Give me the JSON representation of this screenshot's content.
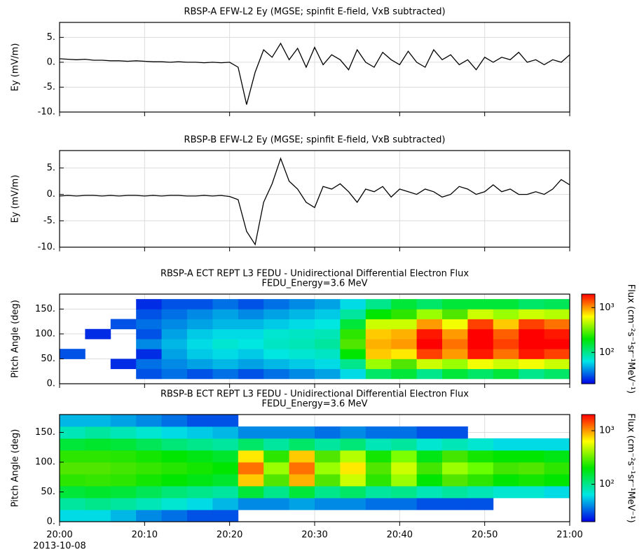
{
  "chart_data": [
    {
      "type": "line",
      "title": "RBSP-A EFW-L2  Ey (MGSE; spinfit E-field, VxB subtracted)",
      "y_label": "Ey (mV/m)",
      "x": [
        "20:00",
        "20:01",
        "20:02",
        "20:03",
        "20:04",
        "20:05",
        "20:06",
        "20:07",
        "20:08",
        "20:09",
        "20:10",
        "20:11",
        "20:12",
        "20:13",
        "20:14",
        "20:15",
        "20:16",
        "20:17",
        "20:18",
        "20:19",
        "20:20",
        "20:21",
        "20:22",
        "20:23",
        "20:24",
        "20:25",
        "20:26",
        "20:27",
        "20:28",
        "20:29",
        "20:30",
        "20:31",
        "20:32",
        "20:33",
        "20:34",
        "20:35",
        "20:36",
        "20:37",
        "20:38",
        "20:39",
        "20:40",
        "20:41",
        "20:42",
        "20:43",
        "20:44",
        "20:45",
        "20:46",
        "20:47",
        "20:48",
        "20:49",
        "20:50",
        "20:51",
        "20:52",
        "20:53",
        "20:54",
        "20:55",
        "20:56",
        "20:57",
        "20:58",
        "20:59",
        "21:00"
      ],
      "values": [
        0.7,
        0.6,
        0.5,
        0.6,
        0.4,
        0.4,
        0.3,
        0.3,
        0.2,
        0.3,
        0.2,
        0.1,
        0.1,
        0.0,
        0.1,
        0.0,
        0.0,
        -0.1,
        0.0,
        -0.1,
        0.0,
        -1.0,
        -8.5,
        -2.0,
        2.5,
        1.0,
        3.8,
        0.5,
        2.8,
        -1.0,
        3.0,
        -0.5,
        1.5,
        0.5,
        -1.5,
        2.5,
        0.0,
        -1.0,
        2.0,
        0.5,
        -0.5,
        2.2,
        0.0,
        -1.0,
        2.5,
        0.5,
        1.5,
        -0.5,
        0.5,
        -1.5,
        1.0,
        0.0,
        1.0,
        0.5,
        2.0,
        0.0,
        0.5,
        -0.5,
        0.5,
        0.0,
        1.5
      ],
      "color": "#000000",
      "xlim": [
        "20:00",
        "21:00"
      ],
      "xticks": [
        "20:00",
        "20:10",
        "20:20",
        "20:30",
        "20:40",
        "20:50",
        "21:00"
      ],
      "ylim": [
        -10,
        8
      ],
      "yticks": [
        {
          "value": -10,
          "label": "-10."
        },
        {
          "value": -5,
          "label": "-5."
        },
        {
          "value": 0,
          "label": "0."
        },
        {
          "value": 5,
          "label": "5."
        }
      ],
      "grid": true
    },
    {
      "type": "line",
      "title": "RBSP-B  EFW-L2  Ey (MGSE; spinfit E-field, VxB subtracted)",
      "y_label": "Ey (mV/m)",
      "x": [
        "20:00",
        "20:01",
        "20:02",
        "20:03",
        "20:04",
        "20:05",
        "20:06",
        "20:07",
        "20:08",
        "20:09",
        "20:10",
        "20:11",
        "20:12",
        "20:13",
        "20:14",
        "20:15",
        "20:16",
        "20:17",
        "20:18",
        "20:19",
        "20:20",
        "20:21",
        "20:22",
        "20:23",
        "20:24",
        "20:25",
        "20:26",
        "20:27",
        "20:28",
        "20:29",
        "20:30",
        "20:31",
        "20:32",
        "20:33",
        "20:34",
        "20:35",
        "20:36",
        "20:37",
        "20:38",
        "20:39",
        "20:40",
        "20:41",
        "20:42",
        "20:43",
        "20:44",
        "20:45",
        "20:46",
        "20:47",
        "20:48",
        "20:49",
        "20:50",
        "20:51",
        "20:52",
        "20:53",
        "20:54",
        "20:55",
        "20:56",
        "20:57",
        "20:58",
        "20:59",
        "21:00"
      ],
      "values": [
        -0.3,
        -0.2,
        -0.3,
        -0.2,
        -0.2,
        -0.3,
        -0.2,
        -0.3,
        -0.2,
        -0.2,
        -0.3,
        -0.2,
        -0.3,
        -0.2,
        -0.2,
        -0.3,
        -0.3,
        -0.2,
        -0.3,
        -0.2,
        -0.4,
        -1.0,
        -7.0,
        -9.5,
        -1.5,
        2.0,
        6.8,
        2.5,
        1.0,
        -1.5,
        -2.5,
        1.5,
        1.0,
        2.0,
        0.5,
        -1.5,
        1.0,
        0.5,
        1.5,
        -0.5,
        1.0,
        0.5,
        0.0,
        1.0,
        0.5,
        -0.5,
        0.0,
        1.5,
        1.0,
        0.0,
        0.5,
        1.8,
        0.5,
        1.0,
        0.0,
        0.0,
        0.5,
        0.0,
        1.0,
        2.8,
        1.8
      ],
      "color": "#000000",
      "xlim": [
        "20:00",
        "21:00"
      ],
      "xticks": [
        "20:00",
        "20:10",
        "20:20",
        "20:30",
        "20:40",
        "20:50",
        "21:00"
      ],
      "ylim": [
        -10,
        8.3
      ],
      "yticks": [
        {
          "value": -10,
          "label": "-10."
        },
        {
          "value": -5,
          "label": "-5."
        },
        {
          "value": 0,
          "label": "0."
        },
        {
          "value": 5,
          "label": "5."
        }
      ],
      "grid": true
    },
    {
      "type": "heatmap",
      "title": "RBSP-A ECT REPT L3  FEDU - Unidirectional Differential Electron Flux",
      "subtitle": "FEDU_Energy=3.6 MeV",
      "y_label": "Pitch Angle (deg)",
      "x": [
        "20:00",
        "20:03",
        "20:06",
        "20:09",
        "20:12",
        "20:15",
        "20:18",
        "20:21",
        "20:24",
        "20:27",
        "20:30",
        "20:33",
        "20:36",
        "20:39",
        "20:42",
        "20:45",
        "20:48",
        "20:51",
        "20:54",
        "20:57",
        "21:00"
      ],
      "y_bins": [
        10,
        30,
        50,
        70,
        90,
        110,
        130,
        150,
        170
      ],
      "values": [
        [
          null,
          null,
          30,
          null,
          null,
          null,
          null,
          null
        ],
        [
          null,
          null,
          null,
          null,
          25,
          null,
          null,
          null
        ],
        [
          null,
          25,
          null,
          null,
          null,
          30,
          null,
          null
        ],
        [
          30,
          35,
          25,
          40,
          30,
          35,
          30,
          25
        ],
        [
          35,
          40,
          45,
          50,
          45,
          40,
          35,
          30
        ],
        [
          30,
          45,
          55,
          60,
          55,
          45,
          40,
          30
        ],
        [
          35,
          50,
          60,
          70,
          60,
          50,
          45,
          35
        ],
        [
          30,
          45,
          55,
          65,
          60,
          50,
          40,
          30
        ],
        [
          35,
          50,
          65,
          75,
          70,
          55,
          45,
          35
        ],
        [
          40,
          55,
          70,
          80,
          75,
          60,
          50,
          40
        ],
        [
          45,
          60,
          75,
          90,
          80,
          65,
          55,
          45
        ],
        [
          60,
          100,
          200,
          300,
          250,
          150,
          90,
          60
        ],
        [
          120,
          400,
          800,
          900,
          800,
          500,
          200,
          100
        ],
        [
          150,
          300,
          700,
          1000,
          900,
          500,
          250,
          150
        ],
        [
          100,
          500,
          1500,
          2000,
          1800,
          1000,
          400,
          120
        ],
        [
          150,
          400,
          1000,
          1200,
          1000,
          600,
          300,
          150
        ],
        [
          120,
          600,
          1800,
          2000,
          2000,
          1500,
          500,
          150
        ],
        [
          150,
          500,
          1200,
          1500,
          1300,
          800,
          400,
          150
        ],
        [
          100,
          600,
          1800,
          2000,
          2000,
          1500,
          500,
          120
        ],
        [
          120,
          500,
          1500,
          2000,
          1800,
          1200,
          450,
          130
        ]
      ],
      "xlim": [
        "20:00",
        "21:00"
      ],
      "xticks": [
        "20:00",
        "20:10",
        "20:20",
        "20:30",
        "20:40",
        "20:50",
        "21:00"
      ],
      "ylim": [
        0,
        180
      ],
      "yticks": [
        {
          "value": 0,
          "label": "0."
        },
        {
          "value": 50,
          "label": "50."
        },
        {
          "value": 100,
          "label": "100."
        },
        {
          "value": 150,
          "label": "150."
        }
      ],
      "grid": true,
      "colormap": "rainbow",
      "zscale": "log",
      "zlim": [
        20,
        2000
      ],
      "zticks": [
        {
          "value": 100,
          "label": "10²"
        },
        {
          "value": 1000,
          "label": "10³"
        }
      ],
      "z_label": "Flux (cm⁻²s⁻¹sr⁻¹MeV⁻¹)"
    },
    {
      "type": "heatmap",
      "title": "RBSP-B ECT REPT L3  FEDU - Unidirectional Differential Electron Flux",
      "subtitle": "FEDU_Energy=3.6 MeV",
      "y_label": "Pitch Angle (deg)",
      "x": [
        "20:00",
        "20:03",
        "20:06",
        "20:09",
        "20:12",
        "20:15",
        "20:18",
        "20:21",
        "20:24",
        "20:27",
        "20:30",
        "20:33",
        "20:36",
        "20:39",
        "20:42",
        "20:45",
        "20:48",
        "20:51",
        "20:54",
        "20:57",
        "21:00"
      ],
      "y_bins": [
        0,
        20,
        40,
        60,
        80,
        100,
        120,
        140,
        160,
        180
      ],
      "values": [
        [
          60,
          90,
          150,
          250,
          300,
          250,
          150,
          80,
          50
        ],
        [
          60,
          100,
          160,
          260,
          300,
          250,
          160,
          90,
          50
        ],
        [
          50,
          90,
          150,
          250,
          280,
          240,
          150,
          80,
          45
        ],
        [
          40,
          80,
          130,
          220,
          260,
          220,
          130,
          70,
          40
        ],
        [
          35,
          70,
          110,
          200,
          240,
          200,
          110,
          60,
          35
        ],
        [
          30,
          60,
          100,
          180,
          220,
          180,
          100,
          55,
          30
        ],
        [
          30,
          50,
          90,
          160,
          200,
          160,
          90,
          50,
          30
        ],
        [
          null,
          40,
          150,
          800,
          1200,
          700,
          120,
          40,
          null
        ],
        [
          null,
          40,
          100,
          300,
          400,
          250,
          90,
          40,
          null
        ],
        [
          null,
          45,
          150,
          900,
          1200,
          800,
          120,
          40,
          null
        ],
        [
          null,
          40,
          100,
          300,
          400,
          300,
          90,
          35,
          null
        ],
        [
          null,
          40,
          120,
          500,
          700,
          450,
          110,
          40,
          null
        ],
        [
          null,
          35,
          90,
          250,
          300,
          220,
          80,
          35,
          null
        ],
        [
          null,
          35,
          100,
          400,
          500,
          350,
          90,
          35,
          null
        ],
        [
          null,
          30,
          80,
          200,
          280,
          180,
          70,
          30,
          null
        ],
        [
          null,
          30,
          90,
          300,
          400,
          280,
          80,
          30,
          null
        ],
        [
          null,
          30,
          80,
          250,
          320,
          220,
          70,
          null,
          null
        ],
        [
          null,
          null,
          70,
          200,
          280,
          200,
          60,
          null,
          null
        ],
        [
          null,
          null,
          70,
          220,
          300,
          200,
          60,
          null,
          null
        ],
        [
          null,
          null,
          60,
          200,
          250,
          180,
          60,
          null,
          null
        ]
      ],
      "xlim": [
        "20:00",
        "21:00"
      ],
      "xticks": [
        "20:00",
        "20:10",
        "20:20",
        "20:30",
        "20:40",
        "20:50",
        "21:00"
      ],
      "x_date": "2013-10-08",
      "ylim": [
        0,
        180
      ],
      "yticks": [
        {
          "value": 0,
          "label": "0."
        },
        {
          "value": 50,
          "label": "50."
        },
        {
          "value": 100,
          "label": "100."
        },
        {
          "value": 150,
          "label": "150."
        }
      ],
      "grid": true,
      "colormap": "rainbow",
      "zscale": "log",
      "zlim": [
        20,
        2000
      ],
      "zticks": [
        {
          "value": 100,
          "label": "10²"
        },
        {
          "value": 1000,
          "label": "10³"
        }
      ],
      "z_label": "Flux (cm⁻²s⁻¹sr⁻¹MeV⁻¹)"
    }
  ]
}
